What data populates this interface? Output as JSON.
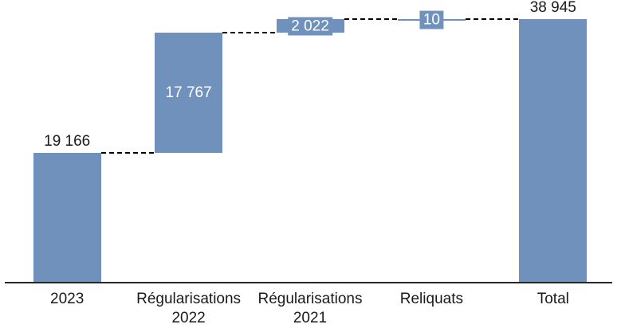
{
  "chart_data": {
    "type": "bar",
    "subtype": "waterfall",
    "title": "",
    "xlabel": "",
    "ylabel": "",
    "grid": false,
    "legend": false,
    "connector_style": "dashed",
    "ylim": [
      0,
      38955
    ],
    "categories": [
      "2023",
      "Régularisations 2022",
      "Régularisations 2021",
      "Reliquats",
      "Total"
    ],
    "bars": [
      {
        "key": "2023",
        "label_lines": [
          "2023"
        ],
        "value": 19166,
        "kind": "absolute",
        "data_label": "19 166",
        "label_pos": "above"
      },
      {
        "key": "regularisations-2022",
        "label_lines": [
          "Régularisations",
          "2022"
        ],
        "value": 17767,
        "kind": "relative",
        "data_label": "17 767",
        "label_pos": "inside"
      },
      {
        "key": "regularisations-2021",
        "label_lines": [
          "Régularisations",
          "2021"
        ],
        "value": 2022,
        "kind": "relative",
        "data_label": "2 022",
        "label_pos": "boxed"
      },
      {
        "key": "reliquats",
        "label_lines": [
          "Reliquats"
        ],
        "value": -10,
        "kind": "relative",
        "data_label": "10",
        "label_pos": "boxed"
      },
      {
        "key": "total",
        "label_lines": [
          "Total"
        ],
        "value": 38945,
        "kind": "total",
        "data_label": "38 945",
        "label_pos": "above"
      }
    ],
    "colors": {
      "bar": "#7191BD",
      "connector": "#000000",
      "axis": "#262626",
      "label_on_bar": "#FFFFFF",
      "label_outside": "#1A1A1A",
      "background": "#FFFFFF"
    }
  }
}
